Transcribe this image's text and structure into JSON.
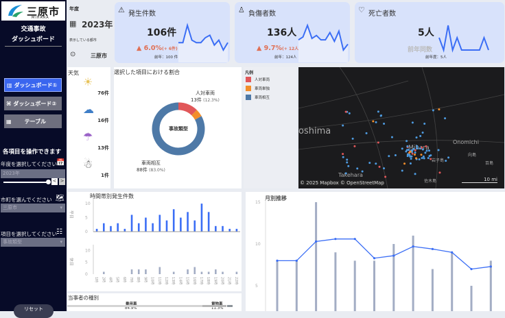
{
  "sidebar": {
    "logo_text": "三原市",
    "logo_sub": "MIHARA",
    "app_title_1": "交通事故",
    "app_title_2": "ダッシュボード",
    "nav": [
      {
        "label": "ダッシュボード①",
        "icon": "bar-chart-icon",
        "active": true
      },
      {
        "label": "ダッシュボード②",
        "icon": "network-icon",
        "active": false
      },
      {
        "label": "テーブル",
        "icon": "table-icon",
        "active": false
      }
    ],
    "controls_heading": "各項目を操作できます",
    "year_label": "年度を選択してください",
    "year_value": "2023年",
    "city_label": "市町を選んでください",
    "city_value": "三原市",
    "item_label": "項目を選択してください",
    "item_value": "事故類型",
    "reset_label": "リセット",
    "slider_prev": "<",
    "slider_next": ">"
  },
  "filters": {
    "year_heading": "年度",
    "year": "2023年",
    "city_heading": "表示している都市",
    "city": "三原市"
  },
  "kpis": [
    {
      "title": "発生件数",
      "icon": "warning-icon",
      "value": "106件",
      "change": "▲ 6.0%",
      "change_detail": "(+ 6件)",
      "prev": "前年：100 件",
      "spark": [
        8,
        8,
        15,
        9,
        8,
        8,
        10,
        11,
        7,
        9,
        5,
        8
      ],
      "accent": "#3b6ef5"
    },
    {
      "title": "負傷者数",
      "icon": "injured-person-icon",
      "value": "136人",
      "change": "▲ 9.7%",
      "change_detail": "(+ 12人)",
      "prev": "前年：124人",
      "spark": [
        10,
        12,
        20,
        11,
        13,
        10,
        10,
        15,
        9,
        16,
        3,
        7
      ],
      "accent": "#3b6ef5"
    },
    {
      "title": "死亡者数",
      "icon": "heart-pulse-icon",
      "value": "5人",
      "change": "前年同数",
      "change_detail": "",
      "prev": "前年度：5人",
      "spark": [
        1,
        0,
        2,
        0,
        1,
        0,
        0,
        0,
        0,
        0,
        1,
        0
      ],
      "accent": "#3b6ef5"
    }
  ],
  "weather": {
    "title": "天気",
    "items": [
      {
        "icon": "sun-icon",
        "count": "76件"
      },
      {
        "icon": "cloud-icon",
        "count": "16件"
      },
      {
        "icon": "umbrella-rain-icon",
        "count": "13件"
      },
      {
        "icon": "snowman-icon",
        "count": "1件"
      }
    ]
  },
  "donut": {
    "title": "選択した項目における割合",
    "center": "事故類型",
    "label_a": "人対車両",
    "label_a_val": "13件",
    "label_a_pct": "(12.3%)",
    "label_b": "車両相互",
    "label_b_val": "88件",
    "label_b_pct": "(83.0%)"
  },
  "legend": {
    "title": "凡例",
    "items": [
      {
        "label": "人対車両",
        "color": "#e15759"
      },
      {
        "label": "車両単独",
        "color": "#f28e2b"
      },
      {
        "label": "車両相互",
        "color": "#4e79a7"
      }
    ]
  },
  "map": {
    "attribution": "© 2025 Mapbox  © OpenStreetMap",
    "scale": "10 mi",
    "places": [
      "oshima",
      "Mihara",
      "Onomichi",
      "Takehara",
      "岩子島",
      "向島",
      "百島",
      "佐木島"
    ]
  },
  "parties": {
    "title": "当事者の種別",
    "a_label": "乗用車",
    "a_pct": "84.9%",
    "b_label": "貨物車",
    "b_pct": "11.3%"
  },
  "chart_data": [
    {
      "type": "bar",
      "title": "時間帯別発生件数",
      "categories": [
        "1時",
        "2時",
        "4時",
        "5時",
        "6時",
        "7時",
        "8時",
        "9時",
        "10時",
        "11時",
        "12時",
        "13時",
        "14時",
        "15時",
        "16時",
        "17時",
        "18時",
        "19時",
        "20時",
        "21時",
        "22時"
      ],
      "series": [
        {
          "name": "平日",
          "values": [
            1,
            3,
            2,
            3,
            1,
            6,
            3,
            5,
            3,
            6,
            4,
            8,
            5,
            7,
            4,
            10,
            7,
            2,
            2,
            1,
            1
          ],
          "color": "#3b6ef5"
        },
        {
          "name": "休日",
          "values": [
            0,
            1,
            0,
            0,
            0,
            2,
            2,
            2,
            0,
            3,
            0,
            1,
            0,
            2,
            3,
            1,
            1,
            2,
            1,
            0,
            1
          ],
          "color": "#a3adc4"
        }
      ],
      "yticks": [
        0,
        5,
        10
      ],
      "ylim": [
        0,
        11
      ]
    },
    {
      "type": "bar+line",
      "title": "月別推移",
      "bars": [
        8,
        8,
        15,
        9,
        8,
        8,
        10,
        11,
        7,
        9,
        5,
        8
      ],
      "line": [
        8,
        8,
        10.3,
        10.6,
        10.6,
        8.3,
        8.6,
        9.7,
        9.4,
        9.0,
        7.0,
        7.3
      ],
      "yticks": [
        5,
        10,
        15
      ],
      "bar_color": "#a3adc4",
      "line_color": "#3b6ef5"
    }
  ]
}
